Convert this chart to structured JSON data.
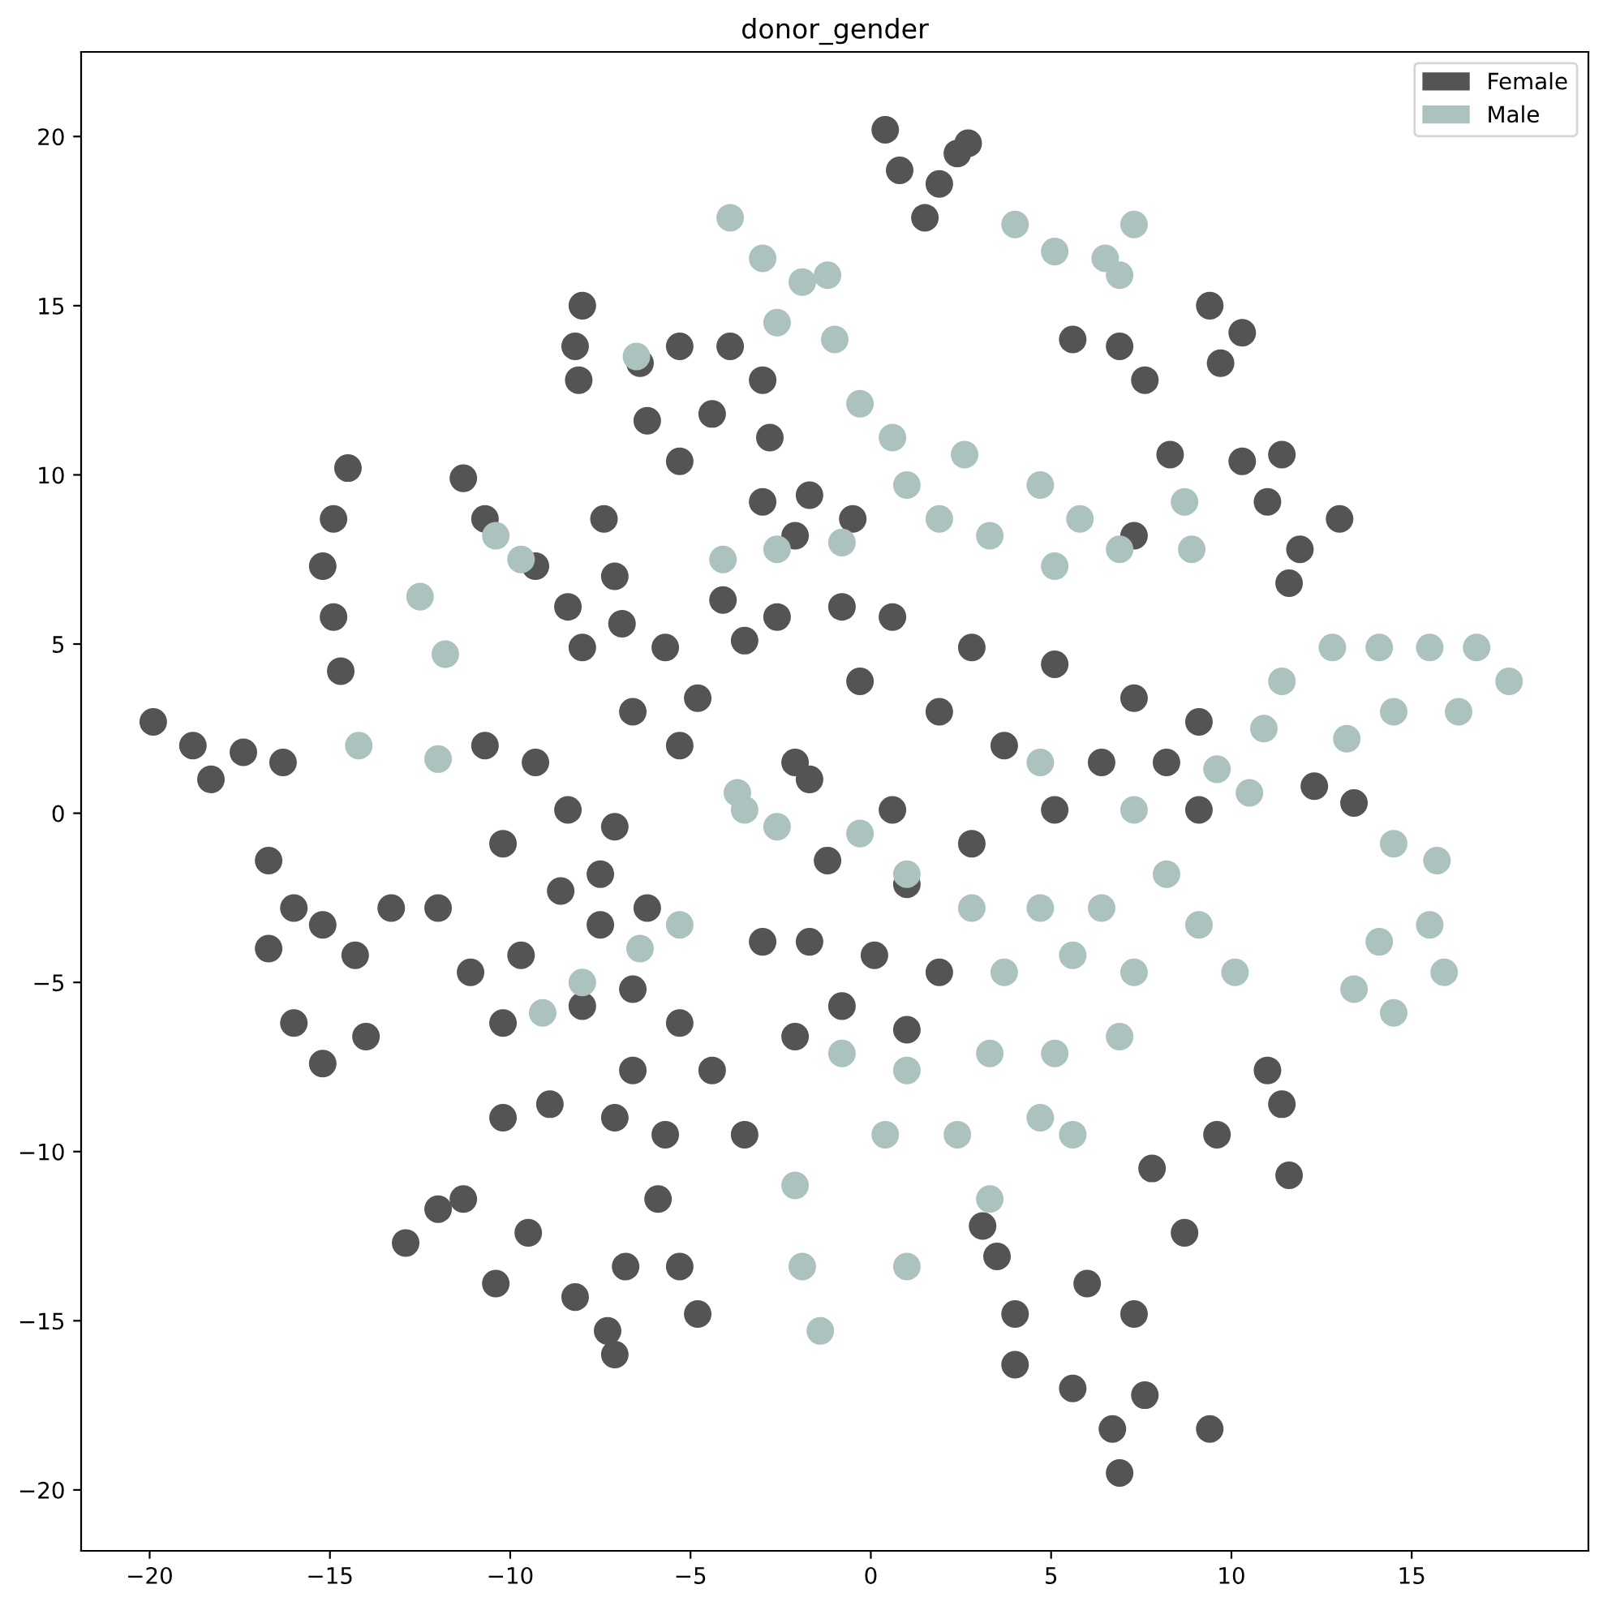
{
  "chart_data": {
    "type": "scatter",
    "title": "donor_gender",
    "marker": "circle",
    "legend": "top right",
    "xlim": [
      -21.9,
      19.9
    ],
    "ylim": [
      -21.8,
      22.5
    ],
    "xticks": [
      -20,
      -15,
      -10,
      -5,
      0,
      5,
      10,
      15
    ],
    "yticks": [
      -20,
      -15,
      -10,
      -5,
      0,
      5,
      10,
      15,
      20
    ],
    "series": [
      {
        "name": "Female",
        "color": "#545452",
        "x": [
          0.4,
          0.8,
          1.5,
          2.4,
          2.7,
          1.9,
          -8.0,
          -8.2,
          -8.1,
          -6.4,
          -5.3,
          -3.9,
          -3.0,
          -6.2,
          -4.4,
          -2.8,
          -5.3,
          -3.0,
          -1.7,
          -0.5,
          -2.1,
          -4.1,
          -2.6,
          -0.8,
          -3.5,
          -14.5,
          -14.9,
          -15.2,
          -14.9,
          -14.7,
          -11.3,
          -10.7,
          -9.3,
          -8.4,
          -7.4,
          -7.1,
          -6.9,
          5.6,
          6.9,
          7.6,
          9.4,
          10.3,
          9.7,
          8.3,
          7.3,
          10.3,
          11.4,
          11.0,
          11.9,
          13.0,
          11.6,
          0.6,
          2.8,
          5.1,
          7.3,
          9.1,
          -0.3,
          1.9,
          3.7,
          6.4,
          -1.7,
          0.6,
          2.8,
          5.1,
          8.2,
          -2.1,
          -1.2,
          1.0,
          -8.0,
          -5.7,
          -4.8,
          -6.6,
          -5.3,
          -10.7,
          -9.3,
          -8.4,
          -7.1,
          -10.2,
          -7.5,
          -19.9,
          -18.8,
          -17.4,
          -16.3,
          -18.3,
          -16.7,
          -16.0,
          -16.7,
          -15.2,
          -13.3,
          -14.3,
          -16.0,
          -15.2,
          -14.0,
          -12.0,
          -11.1,
          -9.7,
          -10.2,
          -8.6,
          -7.5,
          -6.2,
          -6.6,
          -5.3,
          -8.0,
          -3.0,
          -1.7,
          0.1,
          1.9,
          -0.8,
          1.0,
          -2.1,
          -10.2,
          -8.9,
          -7.1,
          -6.6,
          -5.7,
          -4.4,
          -3.5,
          -12.9,
          -12.0,
          -11.3,
          -10.4,
          -9.5,
          -8.2,
          -7.3,
          -7.1,
          -6.8,
          -5.9,
          -5.3,
          -4.8,
          7.8,
          8.7,
          9.6,
          11.4,
          11.6,
          11.0,
          3.5,
          4.0,
          4.0,
          3.1,
          6.0,
          7.3,
          5.6,
          6.7,
          7.6,
          9.4,
          6.9,
          12.3,
          13.4,
          9.1
        ],
        "values": [
          20.2,
          19.0,
          17.6,
          19.5,
          19.8,
          18.6,
          15.0,
          13.8,
          12.8,
          13.3,
          13.8,
          13.8,
          12.8,
          11.6,
          11.8,
          11.1,
          10.4,
          9.2,
          9.4,
          8.7,
          8.2,
          6.3,
          5.8,
          6.1,
          5.1,
          10.2,
          8.7,
          7.3,
          5.8,
          4.2,
          9.9,
          8.7,
          7.3,
          6.1,
          8.7,
          7.0,
          5.6,
          14.0,
          13.8,
          12.8,
          15.0,
          14.2,
          13.3,
          10.6,
          8.2,
          10.4,
          10.6,
          9.2,
          7.8,
          8.7,
          6.8,
          5.8,
          4.9,
          4.4,
          3.4,
          2.7,
          3.9,
          3.0,
          2.0,
          1.5,
          1.0,
          0.1,
          -0.9,
          0.1,
          1.5,
          1.5,
          -1.4,
          -2.1,
          4.9,
          4.9,
          3.4,
          3.0,
          2.0,
          2.0,
          1.5,
          0.1,
          -0.4,
          -0.9,
          -1.8,
          2.7,
          2.0,
          1.8,
          1.5,
          1.0,
          -1.4,
          -2.8,
          -4.0,
          -3.3,
          -2.8,
          -4.2,
          -6.2,
          -7.4,
          -6.6,
          -2.8,
          -4.7,
          -4.2,
          -6.2,
          -2.3,
          -3.3,
          -2.8,
          -5.2,
          -6.2,
          -5.7,
          -3.8,
          -3.8,
          -4.2,
          -4.7,
          -5.7,
          -6.4,
          -6.6,
          -9.0,
          -8.6,
          -9.0,
          -7.6,
          -9.5,
          -7.6,
          -9.5,
          -12.7,
          -11.7,
          -11.4,
          -13.9,
          -12.4,
          -14.3,
          -15.3,
          -16.0,
          -13.4,
          -11.4,
          -13.4,
          -14.8,
          -10.5,
          -12.4,
          -9.5,
          -8.6,
          -10.7,
          -7.6,
          -13.1,
          -14.8,
          -16.3,
          -12.2,
          -13.9,
          -14.8,
          -17.0,
          -18.2,
          -17.2,
          -18.2,
          -19.5,
          0.8,
          0.3,
          0.1
        ]
      },
      {
        "name": "Male",
        "color": "#acc2bf",
        "x": [
          -3.9,
          -3.0,
          -1.9,
          -1.2,
          -2.6,
          -1.0,
          4.0,
          5.1,
          6.5,
          7.3,
          6.9,
          -0.3,
          0.6,
          1.0,
          1.9,
          2.6,
          4.7,
          5.8,
          6.9,
          5.1,
          3.3,
          8.7,
          8.9,
          -4.1,
          -2.6,
          -0.8,
          11.4,
          12.8,
          14.1,
          15.5,
          16.8,
          17.7,
          16.3,
          14.5,
          13.2,
          10.9,
          14.1,
          15.5,
          15.9,
          14.5,
          13.4,
          14.5,
          15.7,
          -2.6,
          -3.5,
          -0.3,
          1.0,
          2.8,
          4.7,
          6.4,
          8.2,
          9.1,
          10.1,
          7.3,
          5.6,
          3.7,
          -0.8,
          1.0,
          3.3,
          5.1,
          6.9,
          0.4,
          2.4,
          4.7,
          3.3,
          1.0,
          5.6,
          -2.1,
          -1.9,
          -1.4,
          -9.1,
          -8.0,
          -6.4,
          -5.3,
          -3.7,
          -10.4,
          -9.7,
          -12.5,
          -11.8,
          -14.2,
          -12.0,
          -6.5,
          9.6,
          10.5,
          4.7,
          7.3
        ],
        "values": [
          17.6,
          16.4,
          15.7,
          15.9,
          14.5,
          14.0,
          17.4,
          16.6,
          16.4,
          17.4,
          15.9,
          12.1,
          11.1,
          9.7,
          8.7,
          10.6,
          9.7,
          8.7,
          7.8,
          7.3,
          8.2,
          9.2,
          7.8,
          7.5,
          7.8,
          8.0,
          3.9,
          4.9,
          4.9,
          4.9,
          4.9,
          3.9,
          3.0,
          3.0,
          2.2,
          2.5,
          -3.8,
          -3.3,
          -4.7,
          -5.9,
          -5.2,
          -0.9,
          -1.4,
          -0.4,
          0.1,
          -0.6,
          -1.8,
          -2.8,
          -2.8,
          -2.8,
          -1.8,
          -3.3,
          -4.7,
          -4.7,
          -4.2,
          -4.7,
          -7.1,
          -7.6,
          -7.1,
          -7.1,
          -6.6,
          -9.5,
          -9.5,
          -9.0,
          -11.4,
          -13.4,
          -9.5,
          -11.0,
          -13.4,
          -15.3,
          -5.9,
          -5.0,
          -4.0,
          -3.3,
          0.6,
          8.2,
          7.5,
          6.4,
          4.7,
          2.0,
          1.6,
          13.5,
          1.3,
          0.6,
          1.5,
          0.1
        ]
      }
    ]
  }
}
